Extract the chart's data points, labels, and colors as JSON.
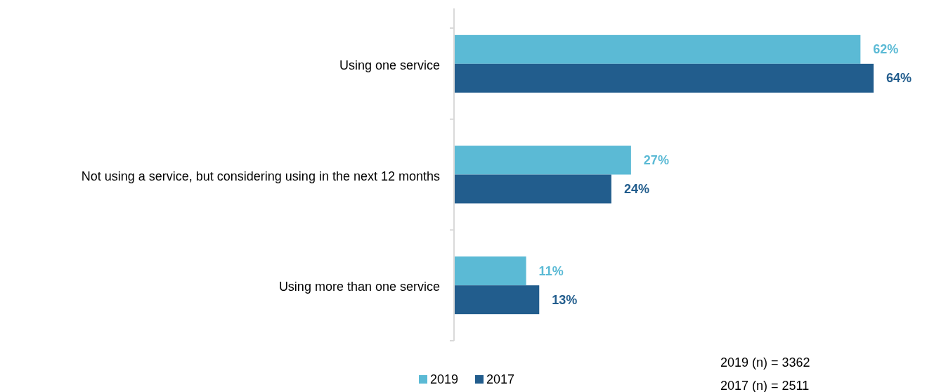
{
  "chart_data": {
    "type": "bar",
    "orientation": "horizontal",
    "categories": [
      "Using one service",
      "Not using a service, but considering using in the next 12 months",
      "Using more than one service"
    ],
    "series": [
      {
        "name": "2019",
        "color": "#5bbad5",
        "values": [
          62,
          27,
          11
        ],
        "value_labels": [
          "62%",
          "27%",
          "11%"
        ]
      },
      {
        "name": "2017",
        "color": "#225d8d",
        "values": [
          64,
          24,
          13
        ],
        "value_labels": [
          "64%",
          "24%",
          "13%"
        ]
      }
    ],
    "legend": "bottom",
    "annotations": [
      "2019 (n) = 3362",
      "2017 (n) = 2511"
    ]
  }
}
